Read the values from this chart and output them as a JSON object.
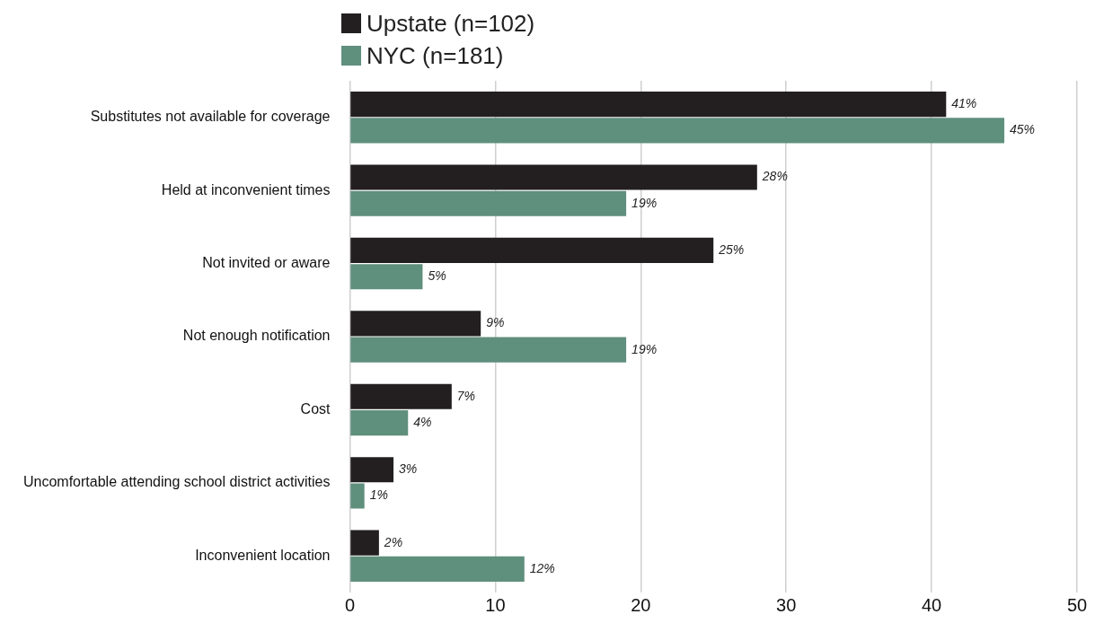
{
  "chart_data": {
    "type": "bar",
    "orientation": "horizontal",
    "categories": [
      "Substitutes not available for coverage",
      "Held at inconvenient times",
      "Not invited or aware",
      "Not enough notification",
      "Cost",
      "Uncomfortable attending school district activities",
      "Inconvenient location"
    ],
    "series": [
      {
        "name": "Upstate (n=102)",
        "color": "#231f20",
        "values": [
          41,
          28,
          25,
          9,
          7,
          3,
          2
        ],
        "value_labels": [
          "41%",
          "28%",
          "25%",
          "9%",
          "7%",
          "3%",
          "2%"
        ]
      },
      {
        "name": "NYC (n=181)",
        "color": "#5f8f7d",
        "values": [
          45,
          19,
          5,
          19,
          4,
          1,
          12
        ],
        "value_labels": [
          "45%",
          "19%",
          "5%",
          "19%",
          "4%",
          "1%",
          "12%"
        ]
      }
    ],
    "xlim": [
      0,
      50
    ],
    "xticks": [
      0,
      10,
      20,
      30,
      40,
      50
    ],
    "grid": "x",
    "legend": "top left"
  }
}
